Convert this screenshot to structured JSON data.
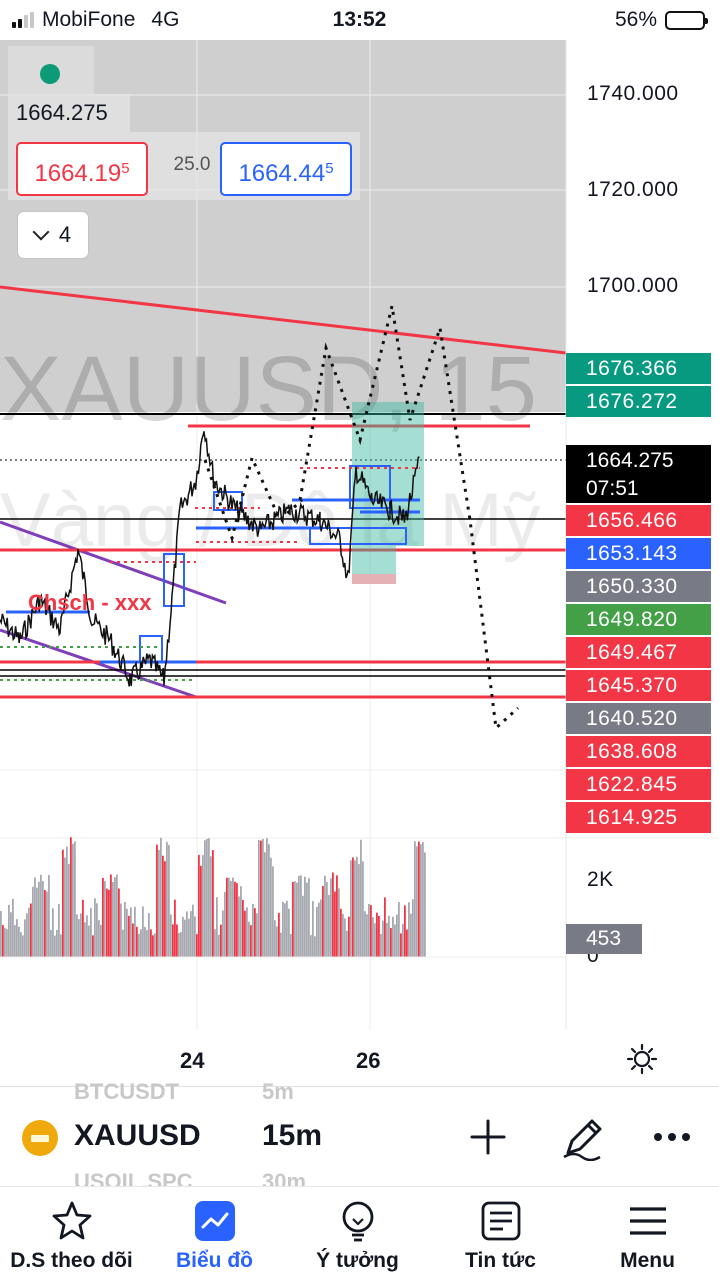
{
  "status_bar": {
    "carrier": "MobiFone",
    "network": "4G",
    "time": "13:52",
    "battery": "56%",
    "battery_level": 0.56
  },
  "chart": {
    "symbol_watermark": "XAUUSD, 15",
    "description_watermark": "Vàng / Đô la Mỹ",
    "last_price": "1664.275",
    "bid": {
      "main": "1664.19",
      "small": "5",
      "color": "#e8333d"
    },
    "ask": {
      "main": "1664.44",
      "small": "5",
      "color": "#2962ff"
    },
    "spread": "25.0",
    "indicators_toggle": "4",
    "annotation": "Chsch - xxx",
    "axis_prices": [
      "1740.000",
      "1720.000",
      "1700.000"
    ],
    "current_price_label": {
      "price": "1664.275",
      "countdown": "07:51"
    },
    "price_labels": [
      {
        "price": "1676.366",
        "color": "#089981"
      },
      {
        "price": "1676.272",
        "color": "#089981"
      },
      {
        "price": "1656.466",
        "color": "#f23645"
      },
      {
        "price": "1653.143",
        "color": "#2962ff"
      },
      {
        "price": "1650.330",
        "color": "#787b86"
      },
      {
        "price": "1649.820",
        "color": "#43a047"
      },
      {
        "price": "1649.467",
        "color": "#f23645"
      },
      {
        "price": "1645.370",
        "color": "#f23645"
      },
      {
        "price": "1640.520",
        "color": "#787b86"
      },
      {
        "price": "1638.608",
        "color": "#f23645"
      },
      {
        "price": "1622.845",
        "color": "#f23645"
      },
      {
        "price": "1614.925",
        "color": "#f23645"
      }
    ],
    "volume_axis": [
      "2K",
      "0"
    ],
    "volume_label": "453",
    "date_labels": [
      "24",
      "26"
    ]
  },
  "symbol_bar": {
    "symbol": "XAUUSD",
    "timeframe": "15m",
    "ghost_above_symbol": "BTCUSDT",
    "ghost_above_tf": "5m",
    "ghost_below_symbol": "USOIL.SPC",
    "ghost_below_tf": "30m"
  },
  "tabs": [
    {
      "label": "D.S theo dõi",
      "icon": "star-icon"
    },
    {
      "label": "Biểu đồ",
      "icon": "chart-icon",
      "active": true
    },
    {
      "label": "Ý tưởng",
      "icon": "lightbulb-icon"
    },
    {
      "label": "Tin tức",
      "icon": "news-icon"
    },
    {
      "label": "Menu",
      "icon": "menu-icon"
    }
  ],
  "colors": {
    "accent": "#2962ff",
    "up": "#089981",
    "down": "#f23645",
    "volume_gray": "#a7a9b0",
    "volume_red": "#f23645"
  }
}
